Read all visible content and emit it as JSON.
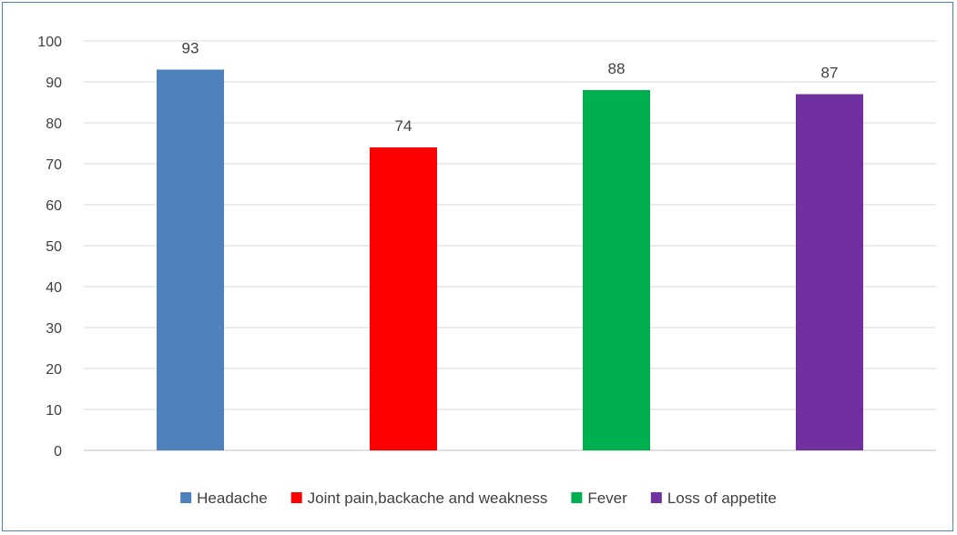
{
  "chart_data": {
    "type": "bar",
    "categories": [
      "Headache",
      "Joint pain,backache and weakness",
      "Fever",
      "Loss of appetite"
    ],
    "values": [
      93,
      74,
      88,
      87
    ],
    "colors": [
      "#4f81bd",
      "#ff0000",
      "#00b050",
      "#7030a0"
    ],
    "ylim": [
      0,
      100
    ],
    "yticks": [
      0,
      10,
      20,
      30,
      40,
      50,
      60,
      70,
      80,
      90,
      100
    ],
    "yticks_text": [
      "0",
      "10",
      "20",
      "30",
      "40",
      "50",
      "60",
      "70",
      "80",
      "90",
      "100"
    ],
    "data_labels": [
      "93",
      "74",
      "88",
      "87"
    ],
    "grid": true,
    "legend_position": "bottom",
    "title": "",
    "xlabel": "",
    "ylabel": ""
  }
}
